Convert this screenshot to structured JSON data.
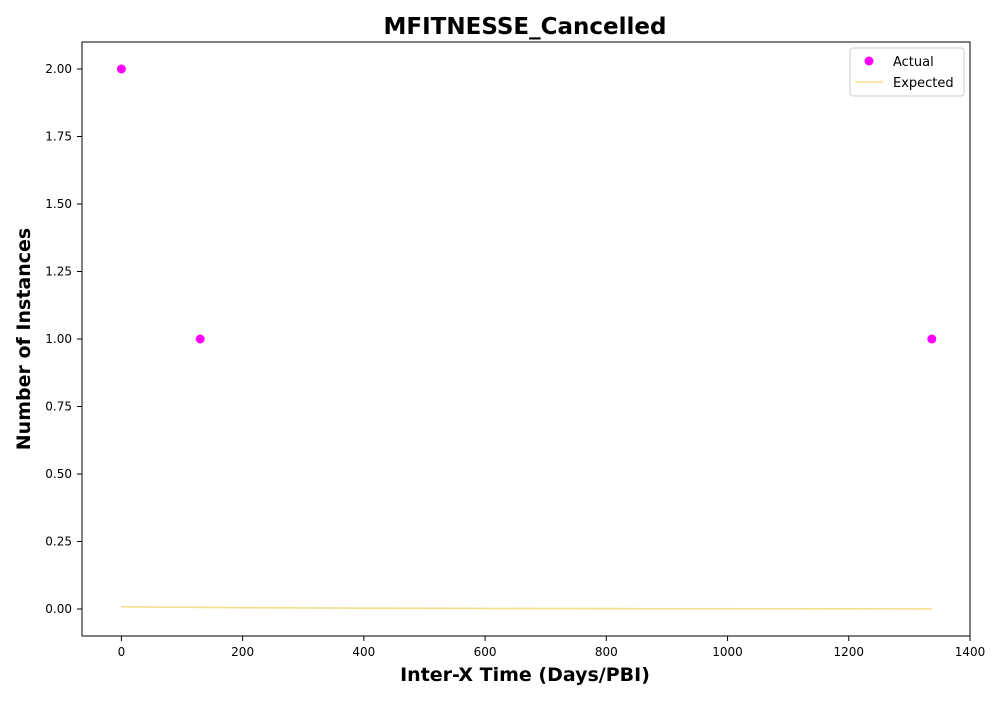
{
  "chart_data": {
    "type": "scatter",
    "title": "MFITNESSE_Cancelled",
    "xlabel": "Inter-X Time (Days/PBI)",
    "ylabel": "Number of Instances",
    "xlim": [
      -65,
      1400
    ],
    "ylim": [
      -0.1,
      2.1
    ],
    "x_ticks": [
      0,
      200,
      400,
      600,
      800,
      1000,
      1200,
      1400
    ],
    "y_ticks": [
      0.0,
      0.25,
      0.5,
      0.75,
      1.0,
      1.25,
      1.5,
      1.75,
      2.0
    ],
    "x_tick_labels": [
      "0",
      "200",
      "400",
      "600",
      "800",
      "1000",
      "1200",
      "1400"
    ],
    "y_tick_labels": [
      "0.00",
      "0.25",
      "0.50",
      "0.75",
      "1.00",
      "1.25",
      "1.50",
      "1.75",
      "2.00"
    ],
    "grid": false,
    "legend_position": "top-right",
    "series": [
      {
        "name": "Actual",
        "kind": "scatter",
        "color": "#ff00ff",
        "points": [
          {
            "x": 0,
            "y": 2.0
          },
          {
            "x": 130,
            "y": 1.0
          },
          {
            "x": 1337,
            "y": 1.0
          }
        ]
      },
      {
        "name": "Expected",
        "kind": "line",
        "color": "#f5dd8a",
        "points": [
          {
            "x": 0,
            "y": 0.008
          },
          {
            "x": 200,
            "y": 0.005
          },
          {
            "x": 400,
            "y": 0.003
          },
          {
            "x": 600,
            "y": 0.002
          },
          {
            "x": 800,
            "y": 0.0015
          },
          {
            "x": 1000,
            "y": 0.001
          },
          {
            "x": 1200,
            "y": 0.0006
          },
          {
            "x": 1337,
            "y": 0.0003
          }
        ]
      }
    ]
  }
}
